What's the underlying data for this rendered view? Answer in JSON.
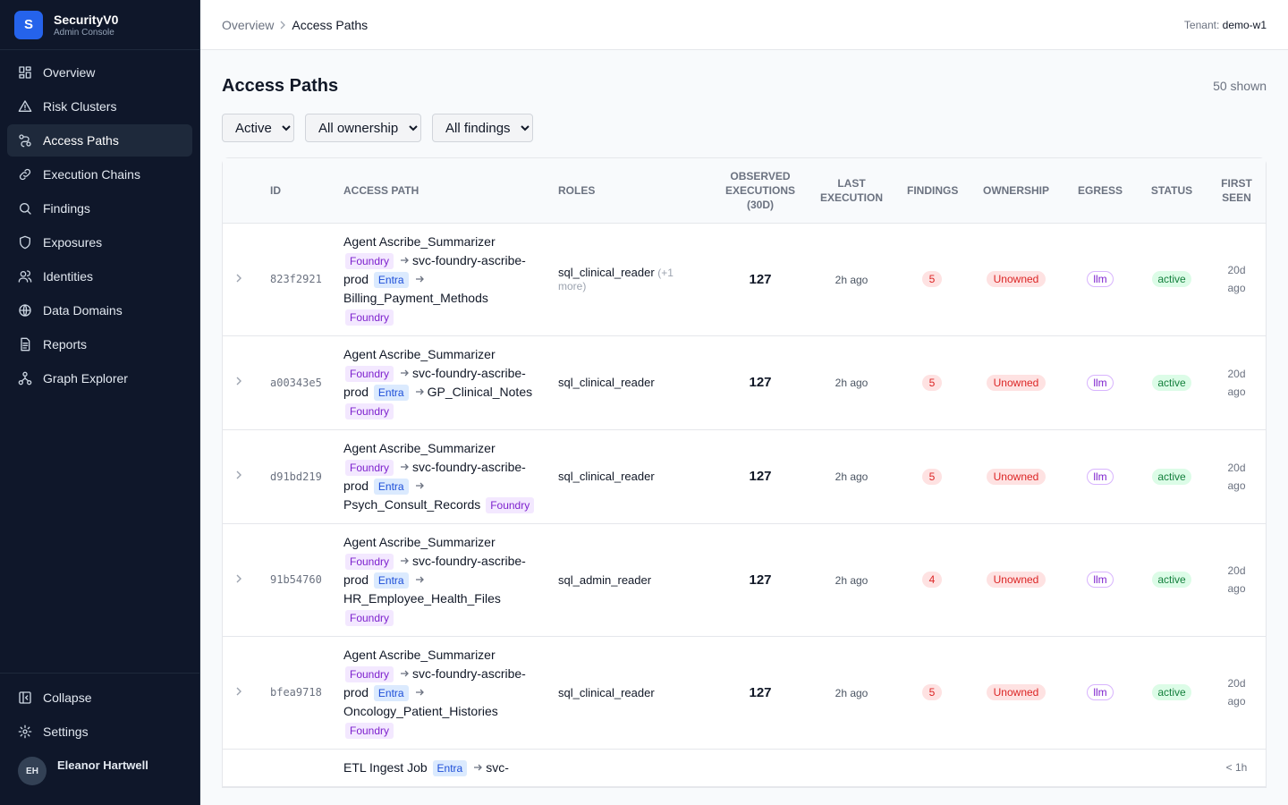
{
  "sidebar": {
    "brand": {
      "logo": "S",
      "name": "SecurityV0",
      "subtitle": "Admin Console"
    },
    "nav": [
      "Overview",
      "Risk Clusters",
      "Access Paths",
      "Execution Chains",
      "Findings",
      "Exposures",
      "Identities",
      "Data Domains",
      "Reports",
      "Graph Explorer"
    ],
    "active": 2,
    "footer_nav": [
      "Collapse",
      "Settings"
    ],
    "user": {
      "initials": "EH",
      "name": "Eleanor Hartwell"
    }
  },
  "header": {
    "breadcrumb": [
      "Overview",
      "Access Paths"
    ],
    "tenant_label": "Tenant:",
    "tenant": "demo-w1"
  },
  "page": {
    "title": "Access Paths",
    "count": "50 shown",
    "filters": [
      "Active",
      "All ownership",
      "All findings"
    ]
  },
  "table": {
    "columns": [
      "ID",
      "ACCESS PATH",
      "ROLES",
      "OBSERVED EXECUTIONS (30D)",
      "LAST EXECUTION",
      "FINDINGS",
      "OWNERSHIP",
      "EGRESS",
      "STATUS",
      "FIRST SEEN"
    ],
    "rows": [
      {
        "id": "823f2921",
        "agent": "Agent Ascribe_Summarizer",
        "agent_tag": "Foundry",
        "svc": "svc-foundry-ascribe-prod",
        "svc_tag": "Entra",
        "target": "Billing_Payment_Methods",
        "target_tag": "Foundry",
        "roles": "sql_clinical_reader",
        "roles_more": "(+1 more)",
        "executions": 127,
        "last": "2h ago",
        "findings": 5,
        "ownership": "Unowned",
        "egress": "llm",
        "status": "active",
        "first_seen": "20d ago"
      },
      {
        "id": "a00343e5",
        "agent": "Agent Ascribe_Summarizer",
        "agent_tag": "Foundry",
        "svc": "svc-foundry-ascribe-prod",
        "svc_tag": "Entra",
        "target": "GP_Clinical_Notes",
        "target_tag": "Foundry",
        "roles": "sql_clinical_reader",
        "executions": 127,
        "last": "2h ago",
        "findings": 5,
        "ownership": "Unowned",
        "egress": "llm",
        "status": "active",
        "first_seen": "20d ago"
      },
      {
        "id": "d91bd219",
        "agent": "Agent Ascribe_Summarizer",
        "agent_tag": "Foundry",
        "svc": "svc-foundry-ascribe-prod",
        "svc_tag": "Entra",
        "target": "Psych_Consult_Records",
        "target_tag": "Foundry",
        "roles": "sql_clinical_reader",
        "executions": 127,
        "last": "2h ago",
        "findings": 5,
        "ownership": "Unowned",
        "egress": "llm",
        "status": "active",
        "first_seen": "20d ago"
      },
      {
        "id": "91b54760",
        "agent": "Agent Ascribe_Summarizer",
        "agent_tag": "Foundry",
        "svc": "svc-foundry-ascribe-prod",
        "svc_tag": "Entra",
        "target": "HR_Employee_Health_Files",
        "target_tag": "Foundry",
        "roles": "sql_admin_reader",
        "executions": 127,
        "last": "2h ago",
        "findings": 4,
        "ownership": "Unowned",
        "egress": "llm",
        "status": "active",
        "first_seen": "20d ago"
      },
      {
        "id": "bfea9718",
        "agent": "Agent Ascribe_Summarizer",
        "agent_tag": "Foundry",
        "svc": "svc-foundry-ascribe-prod",
        "svc_tag": "Entra",
        "target": "Oncology_Patient_Histories",
        "target_tag": "Foundry",
        "roles": "sql_clinical_reader",
        "executions": 127,
        "last": "2h ago",
        "findings": 5,
        "ownership": "Unowned",
        "egress": "llm",
        "status": "active",
        "first_seen": "20d ago"
      },
      {
        "agent": "ETL Ingest Job",
        "agent_tag": "Entra",
        "svc": "svc-",
        "first_seen": "< 1h"
      }
    ]
  }
}
